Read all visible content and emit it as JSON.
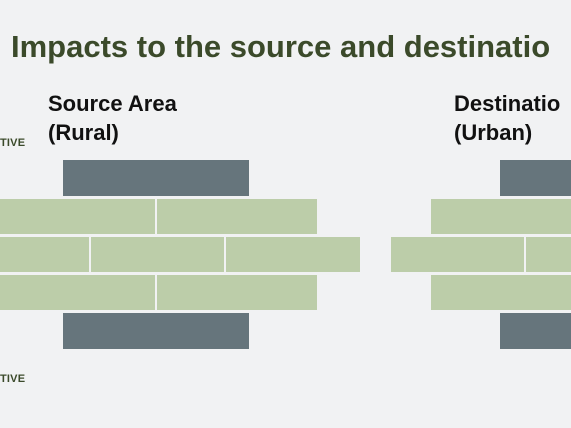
{
  "slide": {
    "title": "Impacts to the source and destinatio",
    "source": {
      "heading_line1": "Source Area",
      "heading_line2": "(Rural)"
    },
    "destination": {
      "heading_line1": "Destinatio",
      "heading_line2": "(Urban)"
    },
    "labels": {
      "top": "TIVE",
      "bottom": "TIVE"
    }
  },
  "colors": {
    "title": "#3b4a2a",
    "label": "#3b4a2a",
    "brick_dark": "#66757c",
    "brick_light": "#bccda9",
    "background": "#f1f2f3"
  }
}
